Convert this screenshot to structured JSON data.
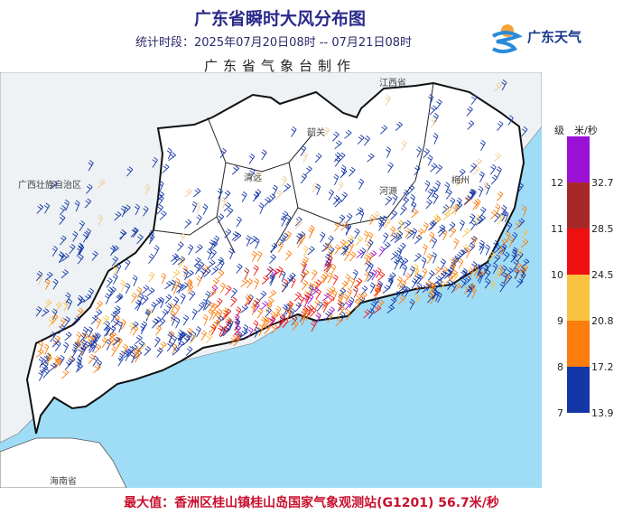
{
  "header": {
    "title": "广东省瞬时大风分布图",
    "period": "统计时段：2025年07月20日08时 -- 07月21日08时",
    "maker": "广东省气象台制作"
  },
  "logo": {
    "text": "广东天气",
    "icon": "guangdong-weather-logo"
  },
  "map": {
    "labels": {
      "jiangxi": "江西省",
      "guangxi": "广西壮族自治区",
      "shaoguan": "韶关",
      "qingyuan": "清远",
      "heyuan": "河源",
      "meizhou": "梅州",
      "hainan": "海南省"
    },
    "colors": {
      "sea": "#9fdcf6",
      "land": "#ffffff",
      "neighbor": "#eef2f4"
    }
  },
  "legend": {
    "header_level": "级",
    "header_unit": "米/秒",
    "bands": [
      {
        "level": "12",
        "speed": "32.7",
        "color": "#9b11d6"
      },
      {
        "level": "11",
        "speed": "28.5",
        "color": "#a8282a"
      },
      {
        "level": "10",
        "speed": "24.5",
        "color": "#ee0f10"
      },
      {
        "level": "9",
        "speed": "20.8",
        "color": "#f9c240"
      },
      {
        "level": "8",
        "speed": "17.2",
        "color": "#fb7d0c"
      },
      {
        "level": "7",
        "speed": "13.9",
        "color": "#1436a6"
      }
    ]
  },
  "footer": {
    "max_value": "最大值：香洲区桂山镇桂山岛国家气象观测站(G1201) 56.7米/秒"
  }
}
